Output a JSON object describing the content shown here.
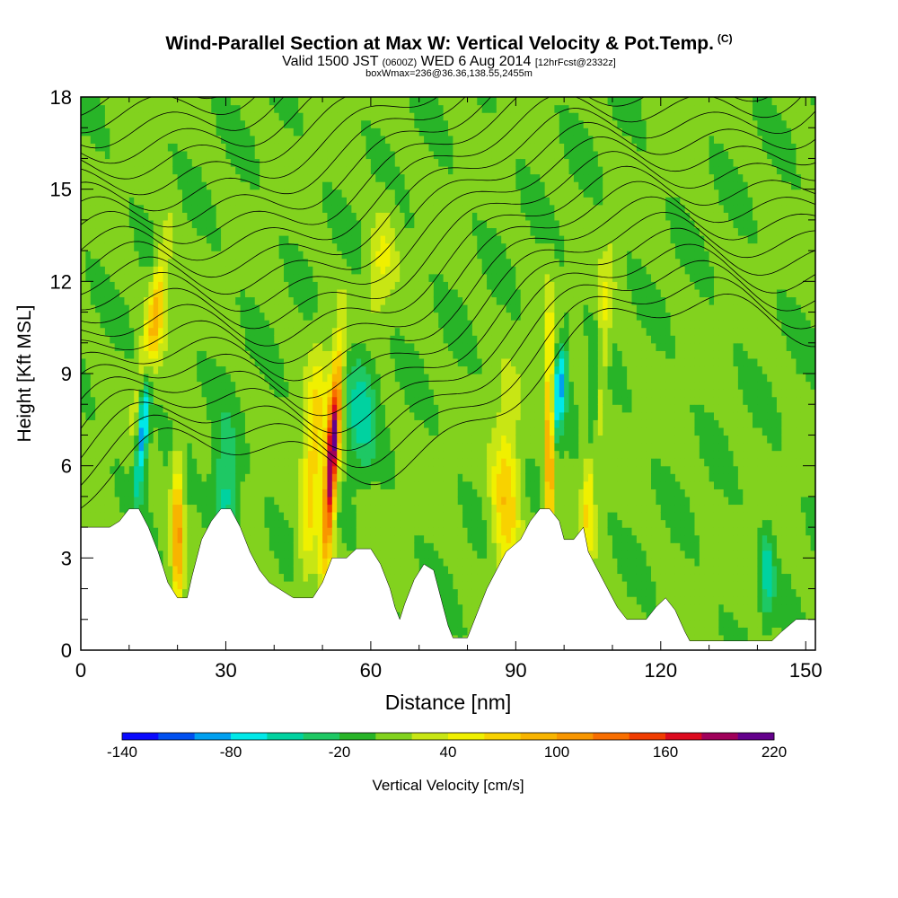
{
  "header": {
    "title": "Wind-Parallel Section at Max W: Vertical Velocity & Pot.Temp.",
    "copyright": "(C)",
    "valid_prefix": "Valid 1500 JST",
    "valid_utc": "(0600Z)",
    "valid_date": "WED 6 Aug 2014",
    "forecast": "[12hrFcst@2332z]",
    "boxwmax": "boxWmax=236@36.36,138.55,2455m"
  },
  "chart_data": {
    "type": "heatmap",
    "xlabel": "Distance [nm]",
    "ylabel": "Height [Kft MSL]",
    "xlim": [
      0,
      152
    ],
    "ylim": [
      0,
      18
    ],
    "x_ticks": [
      0,
      30,
      60,
      90,
      120,
      150
    ],
    "y_ticks": [
      0,
      3,
      6,
      9,
      12,
      15,
      18
    ],
    "colorbar": {
      "label": "Vertical Velocity [cm/s]",
      "tick_labels": [
        -140,
        -80,
        -20,
        40,
        100,
        160,
        220
      ],
      "bounds": [
        -140,
        -120,
        -100,
        -80,
        -60,
        -40,
        -20,
        0,
        20,
        40,
        60,
        80,
        100,
        120,
        140,
        160,
        180,
        200,
        220
      ],
      "colors": [
        "#0a0aff",
        "#0050f0",
        "#00a0f0",
        "#00e8e8",
        "#00d2a0",
        "#1ec864",
        "#28b428",
        "#82d21e",
        "#c8e614",
        "#f0f000",
        "#f8d200",
        "#f8b400",
        "#f89600",
        "#f86e00",
        "#f03c00",
        "#dc0a1e",
        "#a0005a",
        "#64008c"
      ]
    },
    "terrain_height_kft": [
      [
        0,
        4.0
      ],
      [
        6,
        4.0
      ],
      [
        8,
        4.2
      ],
      [
        10,
        4.6
      ],
      [
        12,
        4.6
      ],
      [
        14,
        4.0
      ],
      [
        16,
        3.2
      ],
      [
        18,
        2.2
      ],
      [
        20,
        1.7
      ],
      [
        22,
        1.7
      ],
      [
        23,
        2.4
      ],
      [
        25,
        3.6
      ],
      [
        27,
        4.2
      ],
      [
        29,
        4.6
      ],
      [
        31,
        4.6
      ],
      [
        33,
        4.0
      ],
      [
        35,
        3.2
      ],
      [
        37,
        2.6
      ],
      [
        39,
        2.2
      ],
      [
        41,
        2.0
      ],
      [
        44,
        1.7
      ],
      [
        48,
        1.7
      ],
      [
        50,
        2.2
      ],
      [
        52,
        3.0
      ],
      [
        55,
        3.0
      ],
      [
        57,
        3.3
      ],
      [
        60,
        3.3
      ],
      [
        62,
        2.8
      ],
      [
        64,
        2.0
      ],
      [
        65,
        1.4
      ],
      [
        66,
        1.0
      ],
      [
        67,
        1.5
      ],
      [
        69,
        2.3
      ],
      [
        71,
        2.8
      ],
      [
        73,
        2.6
      ],
      [
        75,
        1.4
      ],
      [
        76,
        0.8
      ],
      [
        77,
        0.4
      ],
      [
        80,
        0.4
      ],
      [
        82,
        1.2
      ],
      [
        84,
        2.0
      ],
      [
        86,
        2.6
      ],
      [
        88,
        3.2
      ],
      [
        91,
        3.6
      ],
      [
        93,
        4.2
      ],
      [
        95,
        4.6
      ],
      [
        97,
        4.6
      ],
      [
        99,
        4.2
      ],
      [
        100,
        3.6
      ],
      [
        102,
        3.6
      ],
      [
        104,
        4.0
      ],
      [
        105,
        3.2
      ],
      [
        107,
        2.6
      ],
      [
        109,
        2.0
      ],
      [
        111,
        1.4
      ],
      [
        113,
        1.0
      ],
      [
        117,
        1.0
      ],
      [
        119,
        1.4
      ],
      [
        121,
        1.7
      ],
      [
        123,
        1.3
      ],
      [
        125,
        0.6
      ],
      [
        126,
        0.3
      ],
      [
        130,
        0.3
      ],
      [
        143,
        0.3
      ],
      [
        145,
        0.6
      ],
      [
        148,
        1.0
      ],
      [
        152,
        1.0
      ]
    ],
    "vertical_velocity_features": [
      {
        "x": 15,
        "y": 10.5,
        "sx": 1.2,
        "sy": 1.8,
        "w": 95,
        "slope": 0.9
      },
      {
        "x": 13,
        "y": 7.5,
        "sx": 0.8,
        "sy": 1.6,
        "w": -120,
        "slope": 0.5
      },
      {
        "x": 20,
        "y": 3.8,
        "sx": 0.8,
        "sy": 1.8,
        "w": 105,
        "slope": 0.0
      },
      {
        "x": 30,
        "y": 5.0,
        "sx": 1.8,
        "sy": 1.6,
        "w": -60,
        "slope": 0.0
      },
      {
        "x": 48,
        "y": 6.0,
        "sx": 1.5,
        "sy": 2.5,
        "w": 70,
        "slope": 0.4
      },
      {
        "x": 52,
        "y": 6.3,
        "sx": 0.9,
        "sy": 2.2,
        "w": 215,
        "slope": 0.4
      },
      {
        "x": 58,
        "y": 8.0,
        "sx": 2.2,
        "sy": 1.5,
        "w": -55,
        "slope": 0.0
      },
      {
        "x": 62,
        "y": 12.5,
        "sx": 1.8,
        "sy": 1.4,
        "w": 35,
        "slope": 0.6
      },
      {
        "x": 88,
        "y": 5.0,
        "sx": 2.0,
        "sy": 1.8,
        "w": 75,
        "slope": 0.0
      },
      {
        "x": 97,
        "y": 6.8,
        "sx": 0.7,
        "sy": 2.5,
        "w": 115,
        "slope": 0.0
      },
      {
        "x": 99,
        "y": 8.5,
        "sx": 1.0,
        "sy": 1.2,
        "w": -90,
        "slope": 0.5
      },
      {
        "x": 105,
        "y": 5.0,
        "sx": 0.9,
        "sy": 1.6,
        "w": 60,
        "slope": 0.0
      },
      {
        "x": 108,
        "y": 10.0,
        "sx": 1.0,
        "sy": 2.0,
        "w": 45,
        "slope": 0.5
      },
      {
        "x": 106,
        "y": 8.0,
        "sx": 0.8,
        "sy": 1.4,
        "w": -55,
        "slope": 0.5
      },
      {
        "x": 142,
        "y": 2.5,
        "sx": 1.0,
        "sy": 1.0,
        "w": -55,
        "slope": 0.0
      }
    ],
    "theta_isentrope_start_kft": [
      4.5,
      5.1,
      5.7,
      6.3,
      6.9,
      7.5,
      8.1,
      8.7,
      9.3,
      9.9,
      10.5,
      11.1,
      11.7,
      12.3,
      12.9,
      13.5,
      14.1,
      14.7,
      15.3,
      15.9,
      16.5,
      17.1,
      17.7
    ]
  }
}
